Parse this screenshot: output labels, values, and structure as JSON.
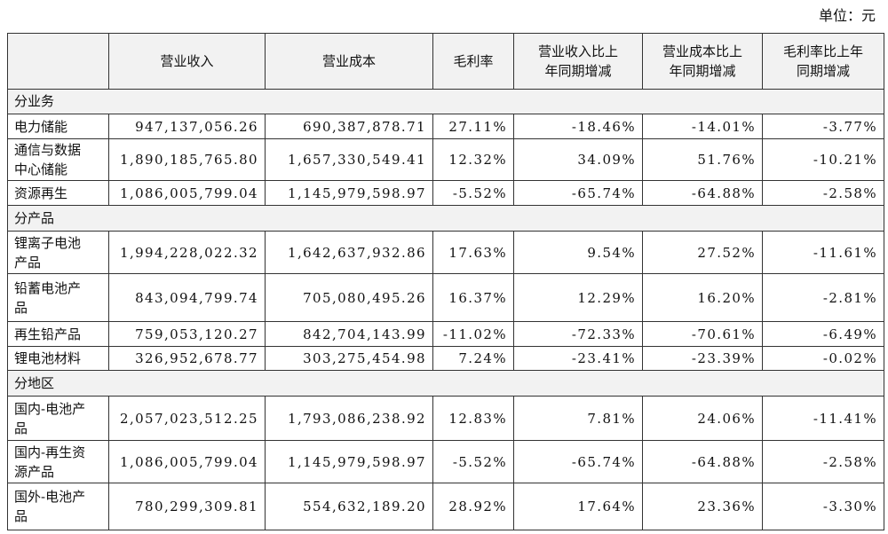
{
  "header": {
    "unit": "单位：元"
  },
  "table": {
    "columns": [
      "营业收入",
      "营业成本",
      "毛利率",
      "营业收入比上年同期增减",
      "营业成本比上年同期增减",
      "毛利率比上年同期增减"
    ],
    "sections": [
      {
        "title": "分业务",
        "rows": [
          [
            "电力储能",
            "947,137,056.26",
            "690,387,878.71",
            "27.11%",
            "-18.46%",
            "-14.01%",
            "-3.77%"
          ],
          [
            "通信与数据中心储能",
            "1,890,185,765.80",
            "1,657,330,549.41",
            "12.32%",
            "34.09%",
            "51.76%",
            "-10.21%"
          ],
          [
            "资源再生",
            "1,086,005,799.04",
            "1,145,979,598.97",
            "-5.52%",
            "-65.74%",
            "-64.88%",
            "-2.58%"
          ]
        ]
      },
      {
        "title": "分产品",
        "rows": [
          [
            "锂离子电池产品",
            "1,994,228,022.32",
            "1,642,637,932.86",
            "17.63%",
            "9.54%",
            "27.52%",
            "-11.61%"
          ],
          [
            "铅蓄电池产品",
            "843,094,799.74",
            "705,080,495.26",
            "16.37%",
            "12.29%",
            "16.20%",
            "-2.81%"
          ],
          [
            "再生铅产品",
            "759,053,120.27",
            "842,704,143.99",
            "-11.02%",
            "-72.33%",
            "-70.61%",
            "-6.49%"
          ],
          [
            "锂电池材料",
            "326,952,678.77",
            "303,275,454.98",
            "7.24%",
            "-23.41%",
            "-23.39%",
            "-0.02%"
          ]
        ]
      },
      {
        "title": "分地区",
        "rows": [
          [
            "国内-电池产品",
            "2,057,023,512.25",
            "1,793,086,238.92",
            "12.83%",
            "7.81%",
            "24.06%",
            "-11.41%"
          ],
          [
            "国内-再生资源产品",
            "1,086,005,799.04",
            "1,145,979,598.97",
            "-5.52%",
            "-65.74%",
            "-64.88%",
            "-2.58%"
          ],
          [
            "国外-电池产品",
            "780,299,309.81",
            "554,632,189.20",
            "28.92%",
            "17.64%",
            "23.36%",
            "-3.30%"
          ]
        ]
      }
    ]
  }
}
